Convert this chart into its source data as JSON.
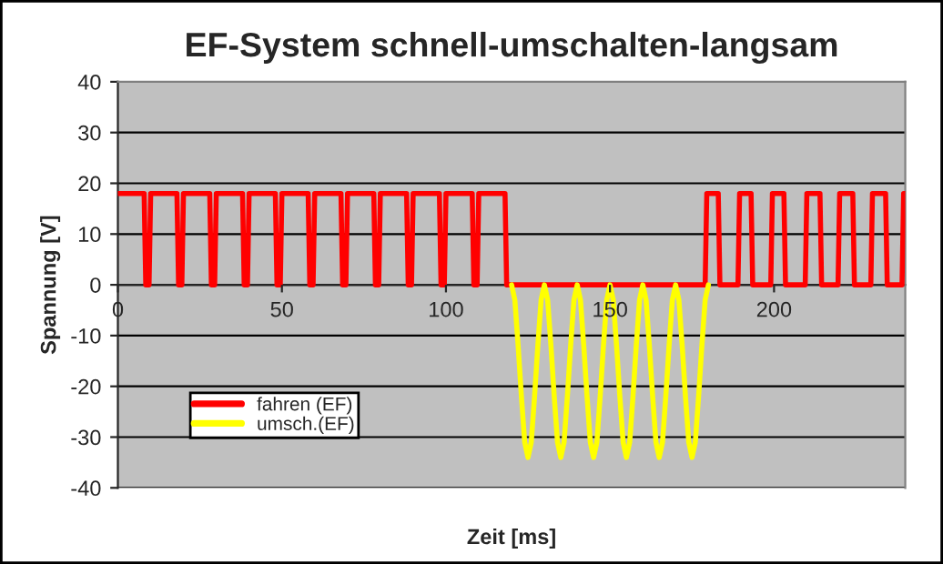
{
  "chart_data": {
    "type": "line",
    "title": "EF-System schnell-umschalten-langsam",
    "xlabel": "Zeit [ms]",
    "ylabel": "Spannung [V]",
    "xlim": [
      0,
      240
    ],
    "xticks": [
      0,
      50,
      100,
      150,
      200
    ],
    "ylim": [
      -40,
      40
    ],
    "yticks": [
      -40,
      -30,
      -20,
      -10,
      0,
      10,
      20,
      30,
      40
    ],
    "grid": "y",
    "legend": "bottom left",
    "series": [
      {
        "name": "fahren (EF)",
        "color": "#ff0000",
        "x": [
          0,
          8,
          8.5,
          9.5,
          10,
          18,
          18.5,
          19.5,
          20,
          28,
          28.5,
          29.5,
          30,
          38,
          38.5,
          39.5,
          40,
          48,
          48.5,
          49.5,
          50,
          58,
          58.5,
          59.5,
          60,
          68,
          68.5,
          69.5,
          70,
          78,
          78.5,
          79.5,
          80,
          88,
          88.5,
          89.5,
          90,
          98,
          98.5,
          99.5,
          100,
          108,
          108.5,
          109.5,
          110,
          118,
          118.5,
          179,
          179.5,
          183,
          183.5,
          189,
          189.5,
          193,
          193.5,
          199,
          199.5,
          203,
          203.5,
          209.5,
          210,
          214,
          214.5,
          219.5,
          220,
          224,
          224.5,
          229.5,
          230,
          234,
          234.5,
          239,
          239.5,
          240
        ],
        "values": [
          18,
          18,
          0,
          0,
          18,
          18,
          0,
          0,
          18,
          18,
          0,
          0,
          18,
          18,
          0,
          0,
          18,
          18,
          0,
          0,
          18,
          18,
          0,
          0,
          18,
          18,
          0,
          0,
          18,
          18,
          0,
          0,
          18,
          18,
          0,
          0,
          18,
          18,
          0,
          0,
          18,
          18,
          0,
          0,
          18,
          18,
          0,
          0,
          18,
          18,
          0,
          0,
          18,
          18,
          0,
          0,
          18,
          18,
          0,
          0,
          18,
          18,
          0,
          0,
          18,
          18,
          0,
          0,
          18,
          18,
          0,
          0,
          18,
          18
        ]
      },
      {
        "name": "umsch.(EF)",
        "color": "#ffff00",
        "x": [
          120,
          121,
          122,
          123,
          124,
          125,
          126,
          127,
          128,
          129,
          130,
          131,
          132,
          133,
          134,
          135,
          136,
          137,
          138,
          139,
          140,
          141,
          142,
          143,
          144,
          145,
          146,
          147,
          148,
          149,
          150,
          151,
          152,
          153,
          154,
          155,
          156,
          157,
          158,
          159,
          160,
          161,
          162,
          163,
          164,
          165,
          166,
          167,
          168,
          169,
          170,
          171,
          172,
          173,
          174,
          175,
          176,
          177,
          178,
          179,
          180
        ],
        "values": [
          0,
          -3,
          -12,
          -22,
          -31,
          -34,
          -31,
          -22,
          -12,
          -3,
          0,
          -3,
          -12,
          -22,
          -31,
          -34,
          -31,
          -22,
          -12,
          -3,
          0,
          -3,
          -12,
          -22,
          -31,
          -34,
          -31,
          -22,
          -12,
          -3,
          0,
          -3,
          -12,
          -22,
          -31,
          -34,
          -31,
          -22,
          -12,
          -3,
          0,
          -3,
          -12,
          -22,
          -31,
          -34,
          -31,
          -22,
          -12,
          -3,
          0,
          -3,
          -12,
          -22,
          -31,
          -34,
          -31,
          -22,
          -12,
          -3,
          0
        ]
      }
    ]
  }
}
